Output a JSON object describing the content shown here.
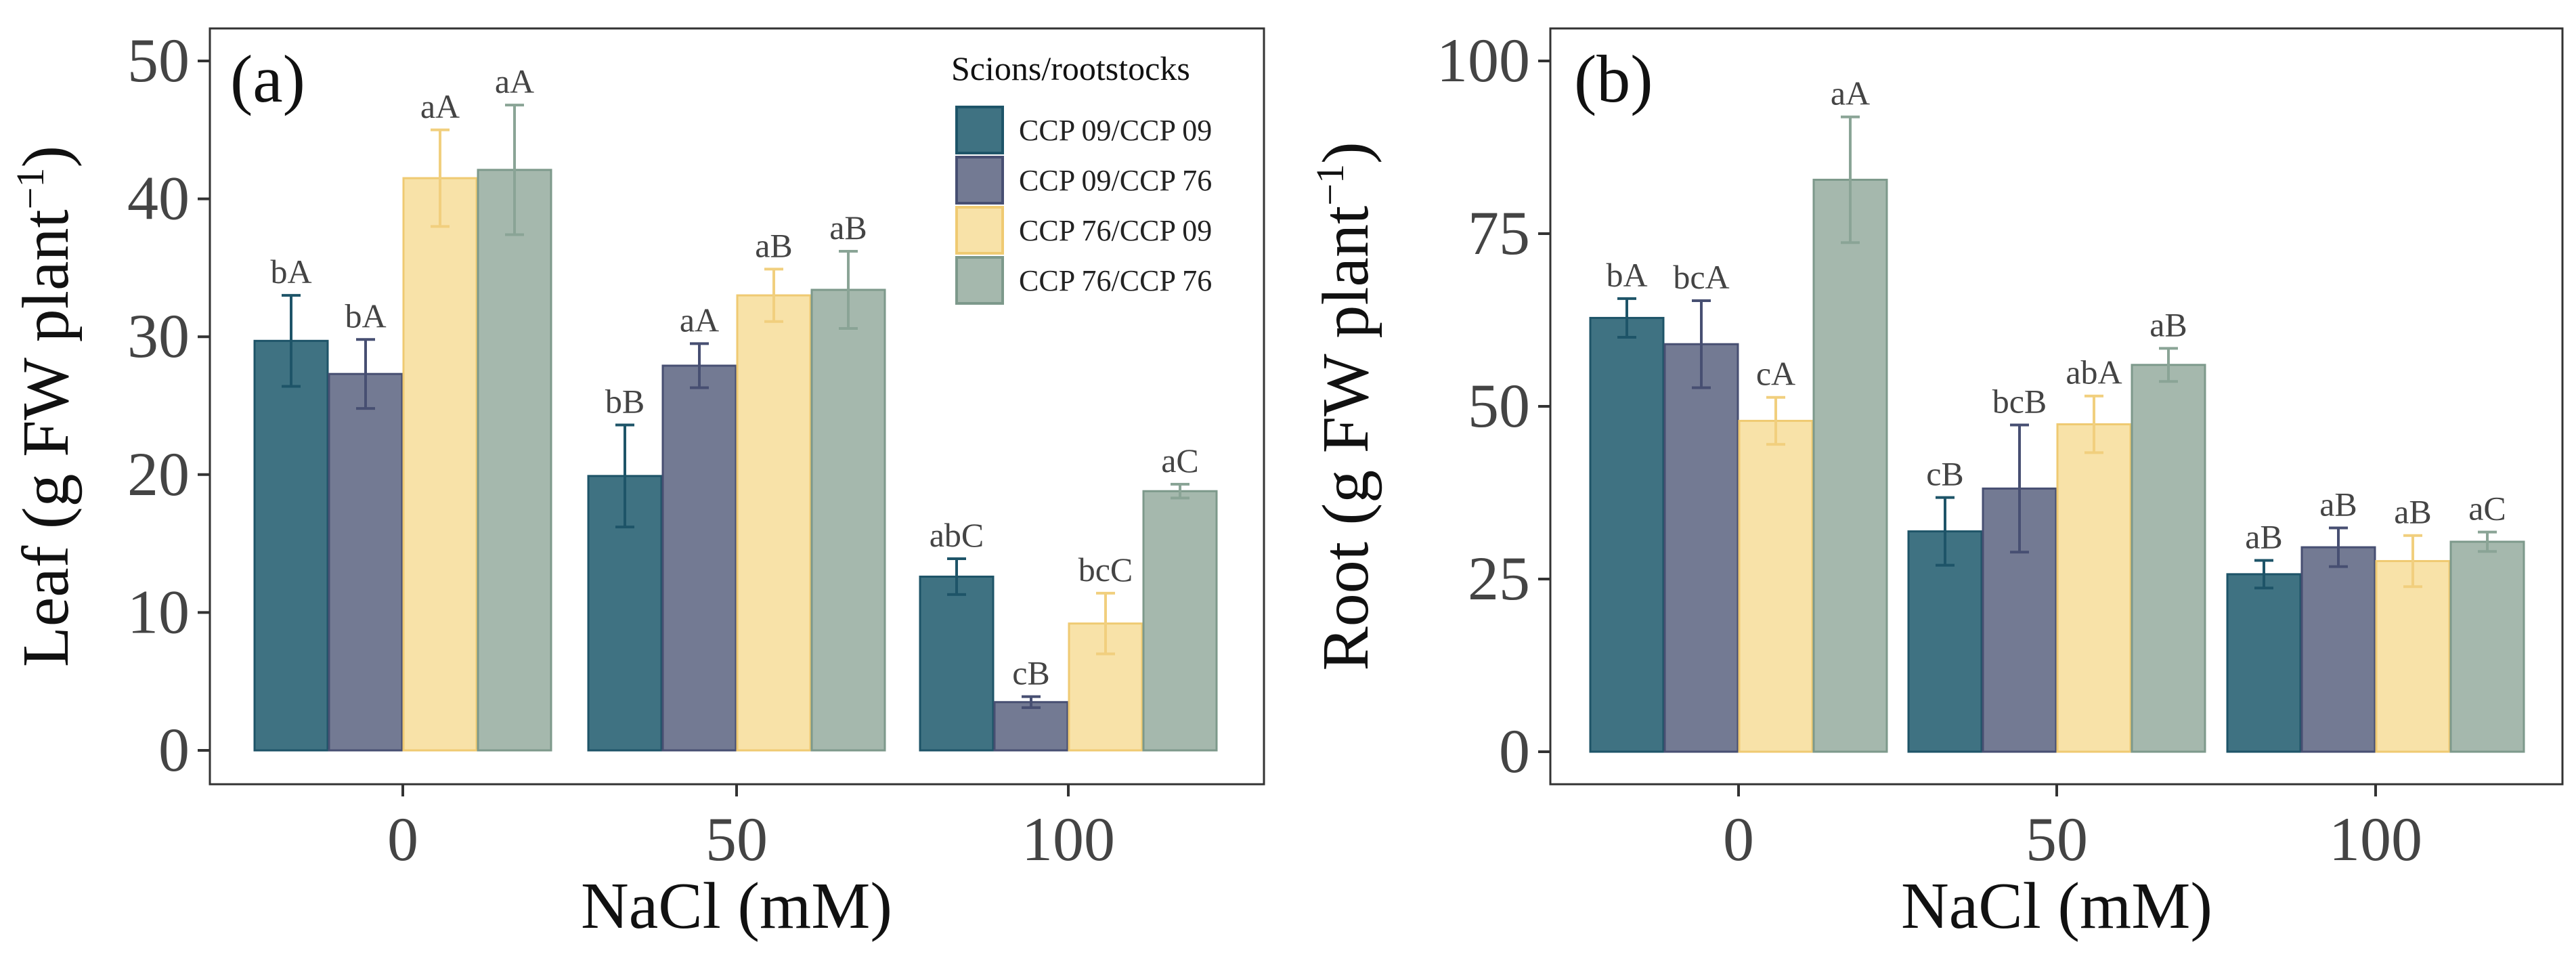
{
  "chart_data": [
    {
      "type": "bar",
      "panel_label": "(a)",
      "title": "",
      "xlabel": "NaCl (mM)",
      "ylabel": "Leaf (g FW plant⁻¹)",
      "ylabel_main": "Leaf (g FW plant",
      "ylabel_sup": "−1",
      "ylabel_close": ")",
      "ylim": [
        0,
        50
      ],
      "yticks": [
        0,
        10,
        20,
        30,
        40,
        50
      ],
      "categories": [
        "0",
        "50",
        "100"
      ],
      "grid": false,
      "series": [
        {
          "name": "CCP 09/CCP 09",
          "values": [
            29.7,
            19.9,
            12.6
          ],
          "errors": [
            3.3,
            3.7,
            1.3
          ],
          "labels": [
            "bA",
            "bB",
            "abC"
          ]
        },
        {
          "name": "CCP 09/CCP 76",
          "values": [
            27.3,
            27.9,
            3.5
          ],
          "errors": [
            2.5,
            1.6,
            0.4
          ],
          "labels": [
            "bA",
            "aA",
            "cB"
          ]
        },
        {
          "name": "CCP 76/CCP 09",
          "values": [
            41.5,
            33.0,
            9.2
          ],
          "errors": [
            3.5,
            1.9,
            2.2
          ],
          "labels": [
            "aA",
            "aB",
            "bcC"
          ]
        },
        {
          "name": "CCP 76/CCP 76",
          "values": [
            42.1,
            33.4,
            18.8
          ],
          "errors": [
            4.7,
            2.8,
            0.5
          ],
          "labels": [
            "aA",
            "aB",
            "aC"
          ]
        }
      ]
    },
    {
      "type": "bar",
      "panel_label": "(b)",
      "title": "",
      "xlabel": "NaCl (mM)",
      "ylabel": "Root (g FW plant⁻¹)",
      "ylabel_main": "Root (g FW plant",
      "ylabel_sup": "−1",
      "ylabel_close": ")",
      "ylim": [
        0,
        100
      ],
      "yticks": [
        0,
        25,
        50,
        75,
        100
      ],
      "categories": [
        "0",
        "50",
        "100"
      ],
      "grid": false,
      "series": [
        {
          "name": "CCP 09/CCP 09",
          "values": [
            62.8,
            31.9,
            25.7
          ],
          "errors": [
            2.8,
            4.9,
            2.0
          ],
          "labels": [
            "bA",
            "cB",
            "aB"
          ]
        },
        {
          "name": "CCP 09/CCP 76",
          "values": [
            59.0,
            38.1,
            29.6
          ],
          "errors": [
            6.3,
            9.2,
            2.8
          ],
          "labels": [
            "bcA",
            "bcB",
            "aB"
          ]
        },
        {
          "name": "CCP 76/CCP 09",
          "values": [
            47.9,
            47.4,
            27.6
          ],
          "errors": [
            3.4,
            4.1,
            3.7
          ],
          "labels": [
            "cA",
            "abA",
            "aB"
          ]
        },
        {
          "name": "CCP 76/CCP 76",
          "values": [
            82.8,
            56.0,
            30.4
          ],
          "errors": [
            9.1,
            2.4,
            1.4
          ],
          "labels": [
            "aA",
            "aB",
            "aC"
          ]
        }
      ]
    }
  ],
  "legend": {
    "title": "Scions/rootstocks",
    "position": "top-right of panel (a)",
    "items": [
      {
        "label": "CCP 09/CCP 09",
        "fill": "#3f7282",
        "stroke": "#1e5468"
      },
      {
        "label": "CCP 09/CCP 76",
        "fill": "#737a93",
        "stroke": "#474f72"
      },
      {
        "label": "CCP 76/CCP 09",
        "fill": "#f8e2a8",
        "stroke": "#efca72"
      },
      {
        "label": "CCP 76/CCP 76",
        "fill": "#a5b8ad",
        "stroke": "#7d998b"
      }
    ]
  },
  "colors": {
    "bar_fills": [
      "#3f7282",
      "#737a93",
      "#f8e2a8",
      "#a5b8ad"
    ],
    "bar_strokes": [
      "#1e5468",
      "#474f72",
      "#efca72",
      "#7d998b"
    ],
    "error_bars": [
      "#1e5468",
      "#474f72",
      "#f1cf7e",
      "#8aa496"
    ],
    "axis": "#222222",
    "tick_label": "#444444"
  }
}
